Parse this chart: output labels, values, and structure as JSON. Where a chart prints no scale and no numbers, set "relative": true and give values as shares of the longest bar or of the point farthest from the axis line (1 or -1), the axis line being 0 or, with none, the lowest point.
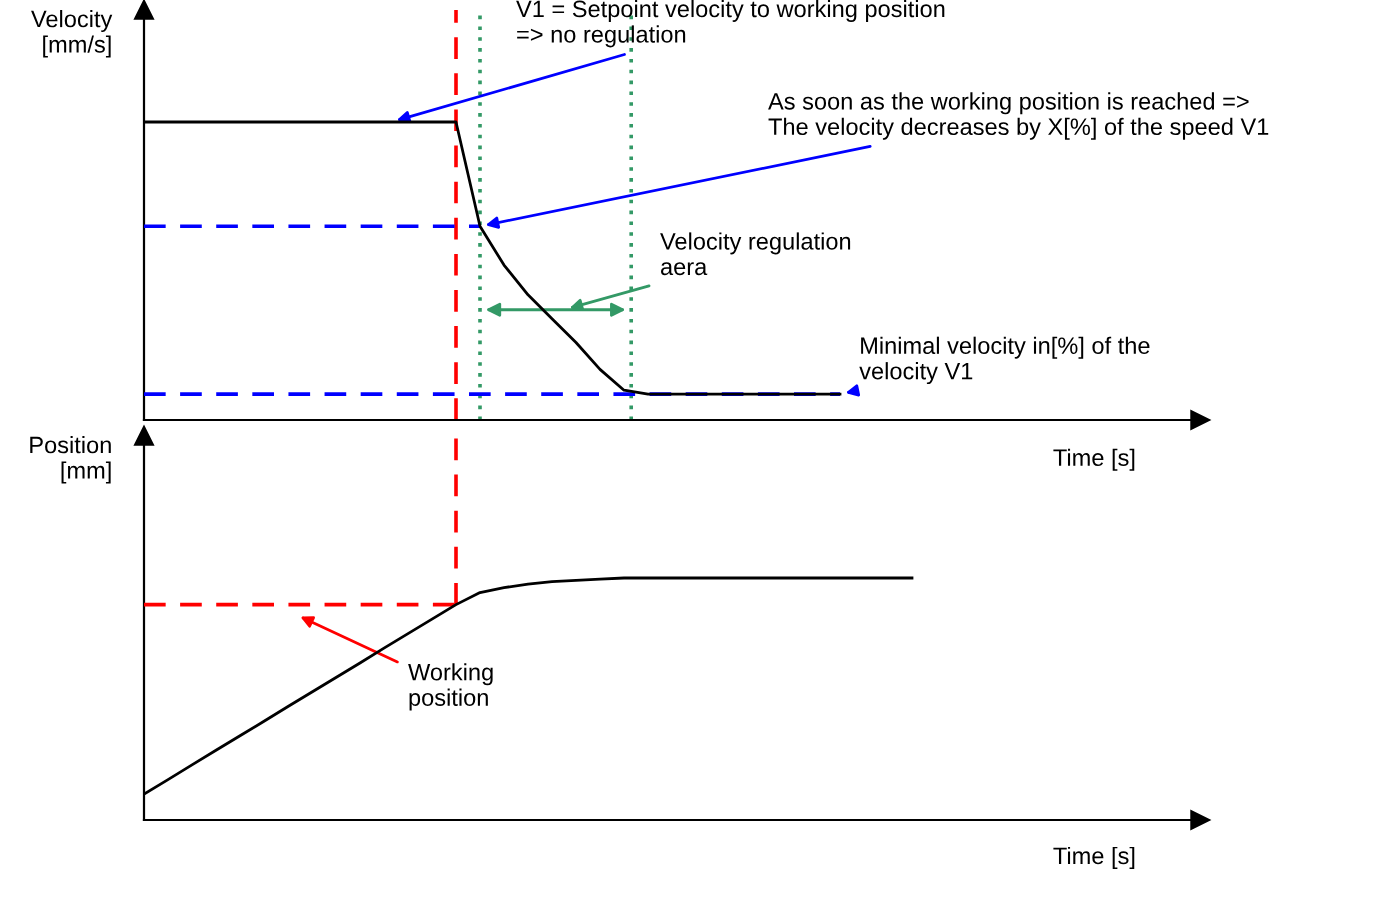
{
  "chart_data": [
    {
      "type": "line",
      "relative": true,
      "ylabel": "Velocity\n[mm/s]",
      "xlabel": "Time [s]",
      "categories": [
        null,
        null,
        null,
        null,
        null,
        null,
        null,
        null,
        null,
        null,
        null,
        null,
        null,
        null,
        null,
        null,
        null,
        null,
        null,
        null,
        null,
        null,
        null,
        null,
        null,
        null,
        null,
        null,
        null,
        null,
        null,
        null,
        null,
        null,
        null,
        null,
        null,
        null,
        null,
        null,
        null,
        null,
        null,
        null
      ],
      "series": [
        {
          "color": "#000000",
          "values": [
            1,
            1,
            1,
            1,
            1,
            1,
            1,
            1,
            1,
            1,
            1,
            1,
            1,
            1,
            0.65,
            0.52,
            0.42,
            0.34,
            0.26,
            0.17,
            0.1,
            0.087,
            0.087,
            0.087,
            0.087,
            0.087,
            0.087,
            0.087,
            0.087,
            0.087,
            null,
            null,
            null,
            null,
            null,
            null,
            null,
            null,
            null,
            null,
            null,
            null,
            null,
            null
          ]
        }
      ],
      "ref_lines": [
        {
          "axis": "y",
          "value": 0.65,
          "color": "#0000ff",
          "line_style": "dashed"
        },
        {
          "axis": "y",
          "value": 0.087,
          "color": "#0000ff",
          "line_style": "dashed"
        }
      ],
      "annotations": [
        "V1 = Setpoint velocity to working position\n=> no regulation",
        "As soon as the working position is reached =>\nThe velocity decreases by X[%] of the speed V1",
        "Velocity regulation\naera",
        "Minimal velocity in[%] of the\nvelocity V1"
      ],
      "grid": false,
      "legend": false,
      "marker": "none",
      "line_style": "solid"
    },
    {
      "type": "line",
      "relative": true,
      "ylabel": "Position\n[mm]",
      "xlabel": "Time [s]",
      "categories": [
        null,
        null,
        null,
        null,
        null,
        null,
        null,
        null,
        null,
        null,
        null,
        null,
        null,
        null,
        null,
        null,
        null,
        null,
        null,
        null,
        null,
        null,
        null,
        null,
        null,
        null,
        null,
        null,
        null,
        null,
        null,
        null,
        null,
        null,
        null,
        null,
        null,
        null,
        null,
        null,
        null,
        null,
        null,
        null
      ],
      "series": [
        {
          "color": "#000000",
          "values": [
            0.107,
            0.167,
            0.228,
            0.288,
            0.348,
            0.408,
            0.469,
            0.529,
            0.589,
            0.649,
            0.71,
            0.77,
            0.83,
            0.89,
            0.94,
            0.96,
            0.975,
            0.985,
            0.99,
            0.995,
            1,
            1,
            1,
            1,
            1,
            1,
            1,
            1,
            1,
            1,
            1,
            1,
            1,
            null,
            null,
            null,
            null,
            null,
            null,
            null,
            null,
            null,
            null,
            null
          ]
        }
      ],
      "ref_lines": [
        {
          "axis": "y",
          "value": 0.89,
          "color": "#ff0000",
          "line_style": "dashed"
        }
      ],
      "annotations": [
        "Working\nposition"
      ],
      "grid": false,
      "legend": false,
      "marker": "none",
      "line_style": "solid"
    }
  ]
}
